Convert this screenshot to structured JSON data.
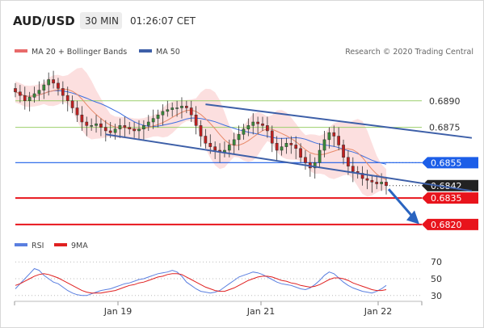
{
  "header": {
    "symbol": "AUD/USD",
    "timeframe": "30 MIN",
    "time": "01:26:07 CET"
  },
  "legend": {
    "ma20_bb": {
      "label": "MA 20 + Bollinger Bands",
      "color": "#e86a6a"
    },
    "ma50": {
      "label": "MA 50",
      "color": "#3d5fa8"
    },
    "credit": "Research © 2020 Trading Central",
    "rsi": {
      "label": "RSI",
      "color": "#5a7fe0"
    },
    "ma9": {
      "label": "9MA",
      "color": "#e02020"
    }
  },
  "colors": {
    "support_red": "#e8141c",
    "resistance_green": "#9ccf6b",
    "ma50_line": "#3d6fe0",
    "pivot_blue": "#1c5ee8",
    "last_price_bg": "#222222",
    "candle_up": "#3a8a3a",
    "candle_down": "#c02020",
    "band_fill": "#fbd9d9",
    "channel": "#3d5fa8"
  },
  "chart_data": [
    {
      "type": "candlestick",
      "ylim": [
        0.6814,
        0.691
      ],
      "y_ticks": [
        "0.6890",
        "0.6875",
        "0.6855",
        "0.6842",
        "0.6835",
        "0.6820"
      ],
      "x_ticks": [
        "Jan 19",
        "Jan 21",
        "Jan 22"
      ],
      "levels": [
        {
          "value": 0.689,
          "label": "0.6890",
          "kind": "resistance"
        },
        {
          "value": 0.6875,
          "label": "0.6875",
          "kind": "resistance"
        },
        {
          "value": 0.6855,
          "label": "0.6855",
          "kind": "pivot"
        },
        {
          "value": 0.6842,
          "label": "0.6842",
          "kind": "last"
        },
        {
          "value": 0.6835,
          "label": "0.6835",
          "kind": "support"
        },
        {
          "value": 0.682,
          "label": "0.6820",
          "kind": "support"
        }
      ],
      "close_values": [
        0.6895,
        0.6893,
        0.689,
        0.6892,
        0.6894,
        0.6896,
        0.6899,
        0.6902,
        0.69,
        0.6897,
        0.6893,
        0.689,
        0.6886,
        0.6882,
        0.6878,
        0.6876,
        0.6876,
        0.6877,
        0.6875,
        0.6873,
        0.6872,
        0.6874,
        0.6876,
        0.6875,
        0.6874,
        0.6873,
        0.6874,
        0.6876,
        0.6878,
        0.688,
        0.6882,
        0.6884,
        0.6885,
        0.6886,
        0.6886,
        0.6887,
        0.6886,
        0.6882,
        0.6876,
        0.687,
        0.6866,
        0.6864,
        0.6862,
        0.6861,
        0.6862,
        0.6865,
        0.6868,
        0.6871,
        0.6874,
        0.6876,
        0.6878,
        0.6877,
        0.6876,
        0.6873,
        0.6866,
        0.6862,
        0.6864,
        0.6866,
        0.6865,
        0.6863,
        0.6858,
        0.6855,
        0.6852,
        0.6855,
        0.6862,
        0.6868,
        0.6872,
        0.687,
        0.6865,
        0.6858,
        0.6853,
        0.685,
        0.6849,
        0.6846,
        0.6845,
        0.6844,
        0.6843,
        0.6844,
        0.6842
      ],
      "trend_channel": {
        "upper": [
          {
            "i": 40,
            "v": 0.6888
          },
          {
            "i": 96,
            "v": 0.6869
          }
        ],
        "lower": [
          {
            "i": 19,
            "v": 0.6871
          },
          {
            "i": 96,
            "v": 0.6839
          }
        ]
      },
      "forecast": {
        "from": 0.684,
        "to": 0.6822
      }
    },
    {
      "type": "line",
      "title": "RSI",
      "ylim": [
        25,
        75
      ],
      "y_ticks": [
        "70",
        "50",
        "30"
      ],
      "series": [
        {
          "name": "RSI",
          "values": [
            38,
            44,
            50,
            56,
            62,
            60,
            54,
            50,
            46,
            44,
            40,
            36,
            33,
            31,
            30,
            30,
            32,
            34,
            36,
            37,
            38,
            40,
            42,
            44,
            45,
            47,
            49,
            50,
            52,
            54,
            56,
            57,
            58,
            60,
            58,
            53,
            46,
            42,
            38,
            35,
            34,
            33,
            34,
            36,
            40,
            44,
            48,
            52,
            54,
            56,
            58,
            57,
            55,
            52,
            49,
            46,
            44,
            43,
            42,
            40,
            38,
            37,
            39,
            43,
            48,
            54,
            58,
            56,
            51,
            46,
            42,
            39,
            37,
            35,
            34,
            33,
            35,
            38,
            42
          ]
        },
        {
          "name": "9MA",
          "values": [
            42,
            44,
            47,
            50,
            53,
            55,
            56,
            55,
            53,
            51,
            48,
            45,
            42,
            39,
            36,
            34,
            33,
            33,
            33,
            34,
            35,
            36,
            38,
            40,
            42,
            43,
            45,
            46,
            48,
            50,
            52,
            53,
            55,
            56,
            56,
            55,
            52,
            49,
            46,
            43,
            40,
            38,
            36,
            35,
            35,
            37,
            39,
            42,
            45,
            48,
            50,
            52,
            53,
            53,
            52,
            50,
            48,
            47,
            45,
            44,
            42,
            41,
            40,
            41,
            43,
            46,
            49,
            51,
            51,
            50,
            48,
            45,
            43,
            41,
            39,
            37,
            36,
            36,
            37
          ]
        }
      ]
    }
  ]
}
